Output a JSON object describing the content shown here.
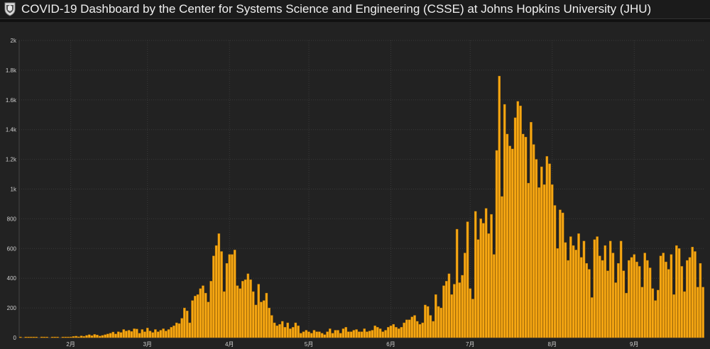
{
  "header": {
    "title": "COVID-19 Dashboard by the Center for Systems Science and Engineering (CSSE) at Johns Hopkins University (JHU)",
    "logo_icon": "jhu-shield-icon"
  },
  "colors": {
    "header_bg": "#1b1b1b",
    "panel_bg": "#222222",
    "bar": "#f6a713",
    "bar_edge": "#b87400",
    "grid": "#3a3a3a",
    "text": "#f0f0f0"
  },
  "chart_data": {
    "type": "bar",
    "grid": true,
    "ylim": [
      0,
      2000
    ],
    "yticks": [
      {
        "value": 0,
        "label": "0"
      },
      {
        "value": 200,
        "label": "200"
      },
      {
        "value": 400,
        "label": "400"
      },
      {
        "value": 600,
        "label": "600"
      },
      {
        "value": 800,
        "label": "800"
      },
      {
        "value": 1000,
        "label": "1k"
      },
      {
        "value": 1200,
        "label": "1.2k"
      },
      {
        "value": 1400,
        "label": "1.4k"
      },
      {
        "value": 1600,
        "label": "1.6k"
      },
      {
        "value": 1800,
        "label": "1.8k"
      },
      {
        "value": 2000,
        "label": "2k"
      }
    ],
    "xticks": [
      {
        "index": 19,
        "label": "2月"
      },
      {
        "index": 48,
        "label": "3月"
      },
      {
        "index": 79,
        "label": "4月"
      },
      {
        "index": 109,
        "label": "5月"
      },
      {
        "index": 140,
        "label": "6月"
      },
      {
        "index": 170,
        "label": "7月"
      },
      {
        "index": 201,
        "label": "8月"
      },
      {
        "index": 232,
        "label": "9月"
      }
    ],
    "values": [
      2,
      0,
      1,
      3,
      2,
      1,
      4,
      0,
      5,
      2,
      1,
      0,
      3,
      1,
      2,
      0,
      3,
      1,
      2,
      4,
      8,
      10,
      6,
      12,
      9,
      15,
      20,
      14,
      22,
      18,
      11,
      15,
      20,
      25,
      30,
      38,
      25,
      40,
      35,
      55,
      45,
      50,
      42,
      60,
      58,
      30,
      55,
      40,
      65,
      45,
      35,
      55,
      40,
      50,
      60,
      45,
      55,
      70,
      80,
      100,
      95,
      130,
      200,
      180,
      100,
      250,
      280,
      290,
      330,
      350,
      300,
      240,
      380,
      550,
      620,
      700,
      580,
      310,
      500,
      560,
      560,
      590,
      350,
      330,
      380,
      390,
      430,
      390,
      310,
      220,
      360,
      240,
      250,
      300,
      200,
      150,
      100,
      80,
      90,
      110,
      70,
      100,
      60,
      70,
      100,
      80,
      30,
      40,
      50,
      40,
      30,
      50,
      40,
      40,
      30,
      20,
      40,
      60,
      30,
      50,
      50,
      30,
      60,
      70,
      40,
      40,
      50,
      55,
      40,
      40,
      60,
      40,
      45,
      50,
      80,
      70,
      60,
      40,
      50,
      70,
      80,
      90,
      70,
      60,
      70,
      100,
      120,
      120,
      140,
      150,
      110,
      90,
      100,
      220,
      210,
      150,
      110,
      290,
      210,
      200,
      350,
      380,
      430,
      290,
      360,
      730,
      370,
      420,
      570,
      780,
      330,
      260,
      850,
      660,
      800,
      770,
      870,
      700,
      830,
      560,
      1260,
      1760,
      950,
      1570,
      1370,
      1290,
      1270,
      1480,
      1590,
      1560,
      1370,
      1350,
      1040,
      1450,
      1300,
      1200,
      1010,
      1150,
      1030,
      1220,
      1170,
      1030,
      890,
      600,
      860,
      840,
      640,
      520,
      680,
      620,
      590,
      700,
      540,
      650,
      500,
      460,
      270,
      660,
      680,
      550,
      520,
      620,
      450,
      650,
      570,
      370,
      500,
      650,
      450,
      300,
      520,
      540,
      560,
      510,
      480,
      340,
      570,
      520,
      470,
      330,
      250,
      320,
      550,
      570,
      510,
      460,
      560,
      290,
      620,
      600,
      480,
      310,
      520,
      540,
      610,
      580,
      340,
      500,
      340
    ]
  }
}
